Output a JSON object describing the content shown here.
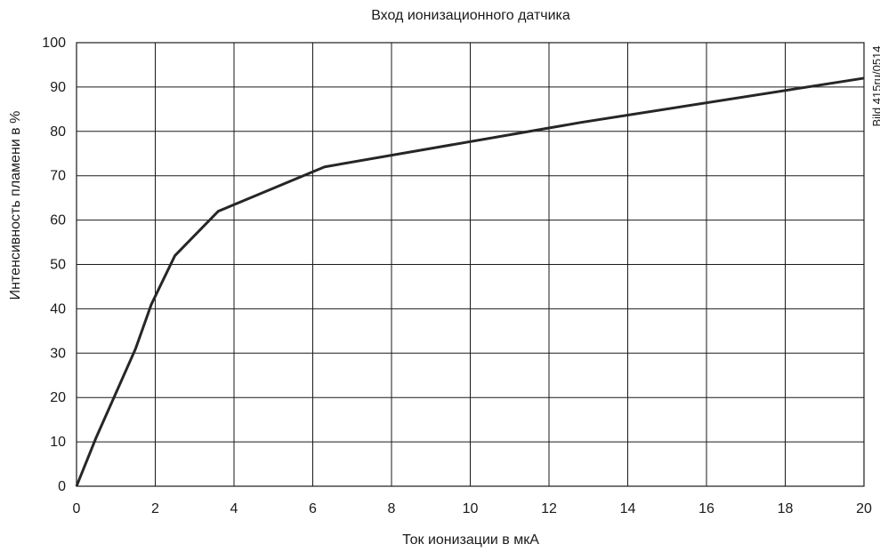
{
  "chart_data": {
    "type": "line",
    "title": "Вход ионизационного датчика",
    "xlabel": "Ток ионизации в мкА",
    "ylabel": "Интенсивность пламени в %",
    "side_note": "Bild 415ru/0514",
    "xlim": [
      0,
      20
    ],
    "ylim": [
      0,
      100
    ],
    "x_ticks": [
      "0",
      "2",
      "4",
      "6",
      "8",
      "10",
      "12",
      "14",
      "16",
      "18",
      "20"
    ],
    "y_ticks": [
      "0",
      "10",
      "20",
      "30",
      "40",
      "50",
      "60",
      "70",
      "80",
      "90",
      "100"
    ],
    "grid": true,
    "series": [
      {
        "x": [
          0,
          0.5,
          1.5,
          1.9,
          2.5,
          3.6,
          6.3,
          12.8,
          20
        ],
        "y": [
          0,
          11,
          31,
          41,
          52,
          62,
          72,
          82,
          92
        ]
      }
    ]
  }
}
